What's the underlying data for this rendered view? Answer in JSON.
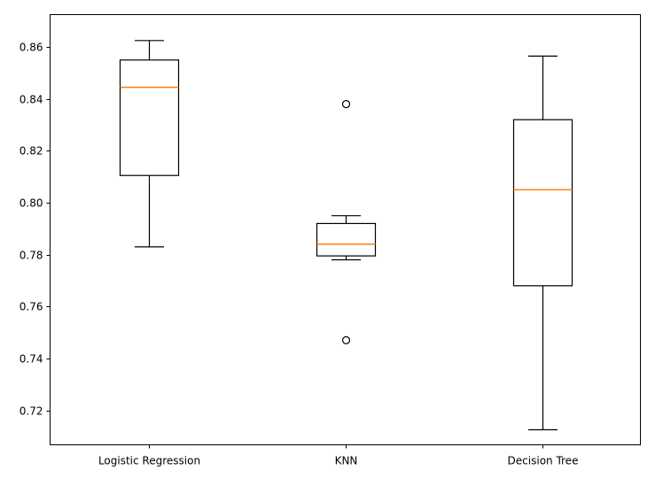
{
  "chart_data": {
    "type": "boxplot",
    "title": "",
    "xlabel": "",
    "ylabel": "",
    "categories": [
      "Logistic Regression",
      "KNN",
      "Decision Tree"
    ],
    "boxes": [
      {
        "category": "Logistic Regression",
        "whislo": 0.783,
        "q1": 0.8105,
        "median": 0.8445,
        "q3": 0.855,
        "whishi": 0.8625,
        "fliers": []
      },
      {
        "category": "KNN",
        "whislo": 0.778,
        "q1": 0.7795,
        "median": 0.784,
        "q3": 0.792,
        "whishi": 0.795,
        "fliers": [
          0.838,
          0.747
        ]
      },
      {
        "category": "Decision Tree",
        "whislo": 0.7125,
        "q1": 0.768,
        "median": 0.805,
        "q3": 0.832,
        "whishi": 0.8565,
        "fliers": []
      }
    ],
    "ylim": [
      0.7067,
      0.8725
    ],
    "yticks": [
      0.72,
      0.74,
      0.76,
      0.78,
      0.8,
      0.82,
      0.84,
      0.86
    ],
    "ytick_labels": [
      "0.72",
      "0.74",
      "0.76",
      "0.78",
      "0.80",
      "0.82",
      "0.84",
      "0.86"
    ],
    "grid": false,
    "colors": {
      "box": "#000000",
      "median": "#ff7f0e",
      "axes": "#000000"
    }
  }
}
